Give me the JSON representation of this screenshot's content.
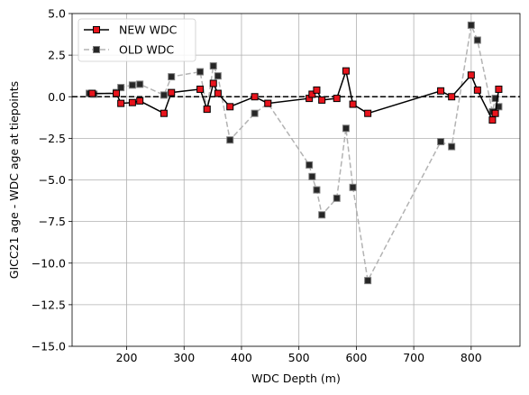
{
  "chart_data": {
    "type": "line",
    "title": "",
    "xlabel": "WDC Depth (m)",
    "ylabel": "GICC21 age - WDC age at tiepoints",
    "xlim": [
      105,
      885
    ],
    "ylim": [
      -15,
      5
    ],
    "xticks": [
      200,
      300,
      400,
      500,
      600,
      700,
      800
    ],
    "yticks": [
      -15.0,
      -12.5,
      -10.0,
      -7.5,
      -5.0,
      -2.5,
      0.0,
      2.5,
      5.0
    ],
    "xtick_labels": [
      "200",
      "300",
      "400",
      "500",
      "600",
      "700",
      "800"
    ],
    "ytick_labels": [
      "−15.0",
      "−12.5",
      "−10.0",
      "−7.5",
      "−5.0",
      "−2.5",
      "0.0",
      "2.5",
      "5.0"
    ],
    "grid": true,
    "legend_position": "top-left",
    "reference_line": {
      "y": 0,
      "style": "dashed",
      "color": "#000000"
    },
    "series": [
      {
        "name": "NEW WDC",
        "line_color": "#000000",
        "marker_face": "#e8141c",
        "marker_edge": "#000000",
        "line_style": "solid",
        "points": [
          [
            140,
            0.2
          ],
          [
            182,
            0.2
          ],
          [
            190,
            -0.4
          ],
          [
            210,
            -0.35
          ],
          [
            223,
            -0.25
          ],
          [
            265,
            -1.0
          ],
          [
            278,
            0.25
          ],
          [
            328,
            0.45
          ],
          [
            340,
            -0.75
          ],
          [
            351,
            0.8
          ],
          [
            359,
            0.2
          ],
          [
            380,
            -0.6
          ],
          [
            423,
            0.0
          ],
          [
            446,
            -0.4
          ],
          [
            518,
            -0.1
          ],
          [
            523,
            0.15
          ],
          [
            531,
            0.4
          ],
          [
            540,
            -0.2
          ],
          [
            566,
            -0.1
          ],
          [
            582,
            1.55
          ],
          [
            594,
            -0.45
          ],
          [
            620,
            -1.0
          ],
          [
            747,
            0.35
          ],
          [
            766,
            0.0
          ],
          [
            800,
            1.3
          ],
          [
            811,
            0.4
          ],
          [
            837,
            -1.4
          ],
          [
            842,
            -1.0
          ],
          [
            848,
            0.45
          ]
        ]
      },
      {
        "name": "OLD WDC",
        "line_color": "#b3b3b3",
        "marker_face": "#262626",
        "marker_edge": "#808080",
        "line_style": "dashed",
        "points": [
          [
            135,
            0.2
          ],
          [
            143,
            0.15
          ],
          [
            182,
            0.25
          ],
          [
            190,
            0.55
          ],
          [
            210,
            0.7
          ],
          [
            223,
            0.75
          ],
          [
            265,
            0.1
          ],
          [
            278,
            1.2
          ],
          [
            328,
            1.5
          ],
          [
            340,
            -0.75
          ],
          [
            351,
            1.85
          ],
          [
            359,
            1.25
          ],
          [
            380,
            -2.6
          ],
          [
            423,
            -1.0
          ],
          [
            446,
            -0.4
          ],
          [
            518,
            -4.1
          ],
          [
            523,
            -4.8
          ],
          [
            531,
            -5.6
          ],
          [
            540,
            -7.1
          ],
          [
            566,
            -6.1
          ],
          [
            582,
            -1.9
          ],
          [
            594,
            -5.45
          ],
          [
            620,
            -11.05
          ],
          [
            747,
            -2.7
          ],
          [
            766,
            -3.0
          ],
          [
            800,
            4.3
          ],
          [
            811,
            3.4
          ],
          [
            837,
            -0.9
          ],
          [
            842,
            -0.1
          ],
          [
            848,
            -0.6
          ]
        ]
      }
    ]
  }
}
